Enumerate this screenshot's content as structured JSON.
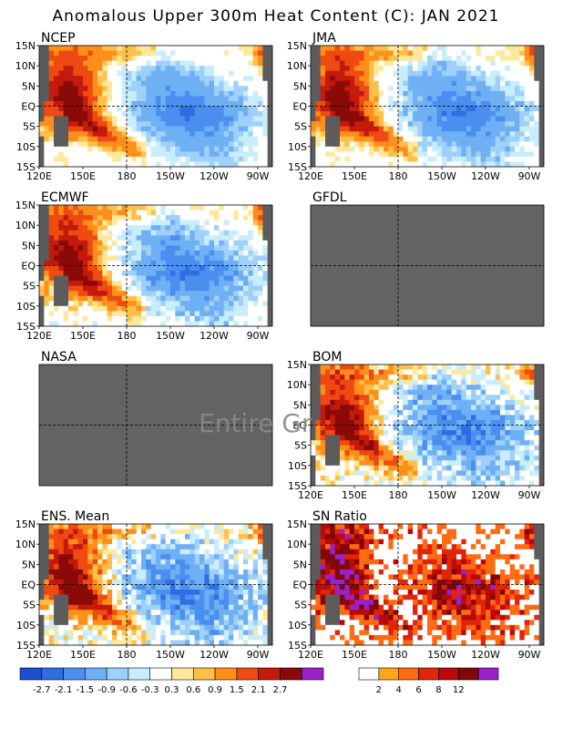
{
  "title": "Anomalous Upper 300m Heat Content (C): JAN 2021",
  "watermark": "Entire Gr",
  "colors": {
    "land": "#5c5c5c",
    "missing": "#636363",
    "grid_line": "#000000",
    "anomaly_palette": [
      "#1c4fd0",
      "#2f6ee0",
      "#4a8ff0",
      "#6fb0f5",
      "#9fd0fa",
      "#c8edfc",
      "#ffffff",
      "#ffe89a",
      "#ffc04a",
      "#ff8f1a",
      "#ee4a12",
      "#c31a0c",
      "#8a0a08",
      "#9a20c8"
    ],
    "sn_palette": [
      "#ffffff",
      "#ffa51a",
      "#ff6a12",
      "#e0250c",
      "#b80a08",
      "#800808",
      "#9a20c8"
    ]
  },
  "axes": {
    "x_ticks": [
      "120E",
      "150E",
      "180",
      "150W",
      "120W",
      "90W"
    ],
    "y_ticks": [
      "15N",
      "10N",
      "5N",
      "EQ",
      "5S",
      "10S",
      "15S"
    ]
  },
  "panels": [
    {
      "name": "NCEP",
      "pattern": "anomaly",
      "variant": 0,
      "available": true
    },
    {
      "name": "JMA",
      "pattern": "anomaly",
      "variant": 1,
      "available": true
    },
    {
      "name": "ECMWF",
      "pattern": "anomaly",
      "variant": 2,
      "available": true
    },
    {
      "name": "GFDL",
      "pattern": "missing",
      "variant": 3,
      "available": false
    },
    {
      "name": "NASA",
      "pattern": "missing",
      "variant": 4,
      "available": false
    },
    {
      "name": "BOM",
      "pattern": "anomaly",
      "variant": 5,
      "available": true
    },
    {
      "name": "ENS. Mean",
      "pattern": "anomaly",
      "variant": 6,
      "available": true
    },
    {
      "name": "SN Ratio",
      "pattern": "snratio",
      "variant": 7,
      "available": true
    }
  ],
  "colorbar_anomaly": {
    "labels": [
      "-2.7",
      "-2.1",
      "-1.5",
      "-0.9",
      "-0.6",
      "-0.3",
      "0.3",
      "0.6",
      "0.9",
      "1.5",
      "2.1",
      "2.7"
    ]
  },
  "colorbar_sn": {
    "labels": [
      "2",
      "4",
      "6",
      "8",
      "12"
    ]
  },
  "chart_data": [
    {
      "type": "heatmap",
      "title": "Anomalous Upper 300m Heat Content (C): JAN 2021",
      "x_range": [
        "120E",
        "80W"
      ],
      "y_range": [
        "15S",
        "15N"
      ],
      "x_ticks": [
        "120E",
        "150E",
        "180",
        "150W",
        "120W",
        "90W"
      ],
      "y_ticks": [
        "15N",
        "10N",
        "5N",
        "EQ",
        "5S",
        "10S",
        "15S"
      ],
      "color_levels": [
        -2.7,
        -2.1,
        -1.5,
        -0.9,
        -0.6,
        -0.3,
        0.3,
        0.6,
        0.9,
        1.5,
        2.1,
        2.7
      ],
      "panels": [
        "NCEP",
        "JMA",
        "ECMWF",
        "GFDL",
        "NASA",
        "BOM",
        "ENS. Mean"
      ],
      "missing_panels": [
        "GFDL",
        "NASA"
      ],
      "summary": {
        "west_pacific_warm_max": 2.7,
        "central_east_pacific_cool_min": -1.5
      }
    },
    {
      "type": "heatmap",
      "title": "SN Ratio",
      "x_range": [
        "120E",
        "80W"
      ],
      "y_range": [
        "15S",
        "15N"
      ],
      "color_levels": [
        2,
        4,
        6,
        8,
        12
      ]
    }
  ]
}
